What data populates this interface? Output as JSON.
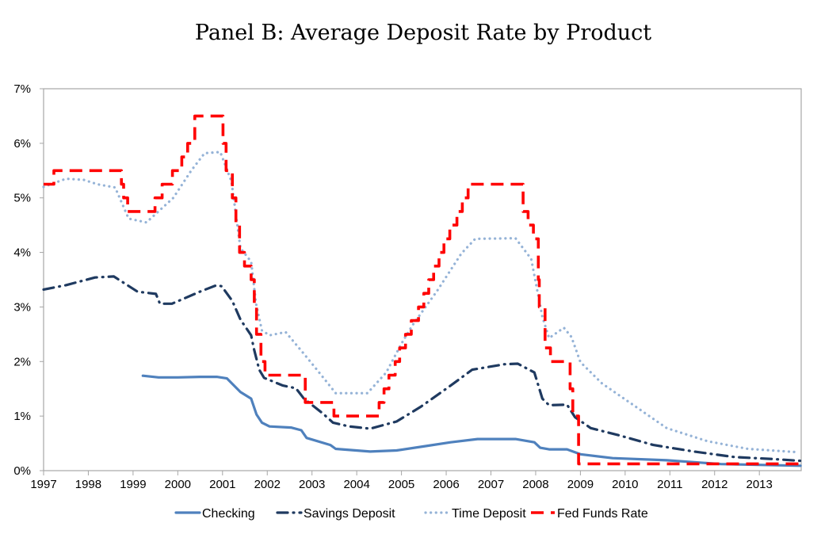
{
  "chart_data": {
    "type": "line",
    "title": "Panel B: Average Deposit Rate by Product",
    "xlabel": "",
    "ylabel": "",
    "xlim": [
      1997,
      2013.92
    ],
    "ylim": [
      0,
      7
    ],
    "x_ticks": [
      "1997",
      "1998",
      "1999",
      "2000",
      "2001",
      "2002",
      "2003",
      "2004",
      "2005",
      "2006",
      "2007",
      "2008",
      "2009",
      "2010",
      "2011",
      "2012",
      "2013"
    ],
    "y_ticks": [
      "0%",
      "1%",
      "2%",
      "3%",
      "4%",
      "5%",
      "6%",
      "7%"
    ],
    "grid": false,
    "legend_position": "bottom",
    "series": [
      {
        "name": "Checking",
        "color": "#4F81BD",
        "style": "solid",
        "points": [
          [
            1999.22,
            1.74
          ],
          [
            1999.57,
            1.71
          ],
          [
            2000.0,
            1.71
          ],
          [
            2000.5,
            1.72
          ],
          [
            2000.87,
            1.72
          ],
          [
            2001.1,
            1.69
          ],
          [
            2001.4,
            1.44
          ],
          [
            2001.64,
            1.32
          ],
          [
            2001.76,
            1.03
          ],
          [
            2001.88,
            0.88
          ],
          [
            2002.05,
            0.81
          ],
          [
            2002.53,
            0.79
          ],
          [
            2002.76,
            0.74
          ],
          [
            2002.88,
            0.6
          ],
          [
            2003.41,
            0.47
          ],
          [
            2003.53,
            0.4
          ],
          [
            2004.3,
            0.35
          ],
          [
            2004.89,
            0.37
          ],
          [
            2005.54,
            0.45
          ],
          [
            2006.1,
            0.52
          ],
          [
            2006.7,
            0.58
          ],
          [
            2007.55,
            0.58
          ],
          [
            2007.97,
            0.52
          ],
          [
            2008.1,
            0.42
          ],
          [
            2008.3,
            0.39
          ],
          [
            2008.7,
            0.39
          ],
          [
            2009.0,
            0.3
          ],
          [
            2009.72,
            0.23
          ],
          [
            2010.93,
            0.19
          ],
          [
            2012.14,
            0.12
          ],
          [
            2013.92,
            0.09
          ]
        ]
      },
      {
        "name": "Savings Deposit",
        "color": "#1F3A60",
        "style": "dash-dot",
        "points": [
          [
            1997.0,
            3.32
          ],
          [
            1997.5,
            3.4
          ],
          [
            1998.15,
            3.54
          ],
          [
            1998.57,
            3.56
          ],
          [
            1999.1,
            3.28
          ],
          [
            1999.51,
            3.24
          ],
          [
            1999.6,
            3.06
          ],
          [
            1999.87,
            3.06
          ],
          [
            2000.52,
            3.29
          ],
          [
            2000.87,
            3.4
          ],
          [
            2000.98,
            3.38
          ],
          [
            2001.22,
            3.11
          ],
          [
            2001.4,
            2.77
          ],
          [
            2001.64,
            2.48
          ],
          [
            2001.7,
            2.24
          ],
          [
            2001.82,
            1.85
          ],
          [
            2001.93,
            1.7
          ],
          [
            2002.35,
            1.56
          ],
          [
            2002.64,
            1.51
          ],
          [
            2002.82,
            1.32
          ],
          [
            2003.24,
            1.05
          ],
          [
            2003.47,
            0.88
          ],
          [
            2003.83,
            0.81
          ],
          [
            2004.3,
            0.77
          ],
          [
            2004.89,
            0.9
          ],
          [
            2005.43,
            1.17
          ],
          [
            2006.1,
            1.56
          ],
          [
            2006.58,
            1.85
          ],
          [
            2007.3,
            1.95
          ],
          [
            2007.6,
            1.96
          ],
          [
            2007.97,
            1.8
          ],
          [
            2008.15,
            1.32
          ],
          [
            2008.3,
            1.2
          ],
          [
            2008.7,
            1.21
          ],
          [
            2008.88,
            0.98
          ],
          [
            2009.23,
            0.78
          ],
          [
            2009.85,
            0.65
          ],
          [
            2010.63,
            0.47
          ],
          [
            2011.54,
            0.35
          ],
          [
            2012.44,
            0.25
          ],
          [
            2013.35,
            0.21
          ],
          [
            2013.92,
            0.18
          ]
        ]
      },
      {
        "name": "Time Deposit",
        "color": "#95B3D7",
        "style": "dotted",
        "points": [
          [
            1997.0,
            5.2
          ],
          [
            1997.5,
            5.35
          ],
          [
            1997.9,
            5.33
          ],
          [
            1998.2,
            5.25
          ],
          [
            1998.6,
            5.19
          ],
          [
            1998.9,
            4.62
          ],
          [
            1999.3,
            4.55
          ],
          [
            1999.9,
            5.0
          ],
          [
            2000.3,
            5.5
          ],
          [
            2000.6,
            5.82
          ],
          [
            2000.95,
            5.84
          ],
          [
            2001.2,
            5.3
          ],
          [
            2001.4,
            4.08
          ],
          [
            2001.64,
            3.83
          ],
          [
            2001.75,
            3.06
          ],
          [
            2001.88,
            2.57
          ],
          [
            2002.05,
            2.48
          ],
          [
            2002.41,
            2.54
          ],
          [
            2002.82,
            2.14
          ],
          [
            2003.11,
            1.85
          ],
          [
            2003.53,
            1.42
          ],
          [
            2004.24,
            1.42
          ],
          [
            2004.66,
            1.8
          ],
          [
            2005.0,
            2.33
          ],
          [
            2005.25,
            2.67
          ],
          [
            2005.8,
            3.3
          ],
          [
            2006.34,
            3.98
          ],
          [
            2006.65,
            4.25
          ],
          [
            2007.55,
            4.26
          ],
          [
            2007.9,
            3.88
          ],
          [
            2008.15,
            2.82
          ],
          [
            2008.3,
            2.43
          ],
          [
            2008.63,
            2.62
          ],
          [
            2008.8,
            2.45
          ],
          [
            2009.0,
            1.99
          ],
          [
            2009.48,
            1.6
          ],
          [
            2010.33,
            1.12
          ],
          [
            2010.93,
            0.78
          ],
          [
            2011.84,
            0.54
          ],
          [
            2012.74,
            0.4
          ],
          [
            2013.83,
            0.34
          ]
        ]
      },
      {
        "name": "Fed Funds Rate",
        "color": "#FF0000",
        "style": "dashed",
        "step": true,
        "points": [
          [
            1997.0,
            5.25
          ],
          [
            1997.23,
            5.5
          ],
          [
            1998.74,
            5.25
          ],
          [
            1998.79,
            5.0
          ],
          [
            1998.88,
            4.75
          ],
          [
            1999.49,
            5.0
          ],
          [
            1999.65,
            5.25
          ],
          [
            1999.88,
            5.5
          ],
          [
            2000.09,
            5.75
          ],
          [
            2000.22,
            6.0
          ],
          [
            2000.38,
            6.5
          ],
          [
            2001.01,
            6.0
          ],
          [
            2001.08,
            5.5
          ],
          [
            2001.22,
            5.0
          ],
          [
            2001.3,
            4.5
          ],
          [
            2001.38,
            4.0
          ],
          [
            2001.49,
            3.75
          ],
          [
            2001.64,
            3.5
          ],
          [
            2001.71,
            3.0
          ],
          [
            2001.76,
            2.5
          ],
          [
            2001.86,
            2.0
          ],
          [
            2001.95,
            1.75
          ],
          [
            2002.85,
            1.25
          ],
          [
            2003.49,
            1.0
          ],
          [
            2004.5,
            1.25
          ],
          [
            2004.61,
            1.5
          ],
          [
            2004.72,
            1.75
          ],
          [
            2004.86,
            2.0
          ],
          [
            2004.96,
            2.25
          ],
          [
            2005.09,
            2.5
          ],
          [
            2005.22,
            2.75
          ],
          [
            2005.38,
            3.0
          ],
          [
            2005.5,
            3.25
          ],
          [
            2005.61,
            3.5
          ],
          [
            2005.72,
            3.75
          ],
          [
            2005.84,
            4.0
          ],
          [
            2005.95,
            4.25
          ],
          [
            2006.08,
            4.5
          ],
          [
            2006.24,
            4.75
          ],
          [
            2006.36,
            5.0
          ],
          [
            2006.49,
            5.25
          ],
          [
            2007.72,
            4.75
          ],
          [
            2007.83,
            4.5
          ],
          [
            2007.95,
            4.25
          ],
          [
            2008.06,
            3.5
          ],
          [
            2008.08,
            3.0
          ],
          [
            2008.21,
            2.25
          ],
          [
            2008.33,
            2.0
          ],
          [
            2008.77,
            1.5
          ],
          [
            2008.83,
            1.0
          ],
          [
            2008.96,
            0.125
          ],
          [
            2013.92,
            0.125
          ]
        ]
      }
    ]
  }
}
